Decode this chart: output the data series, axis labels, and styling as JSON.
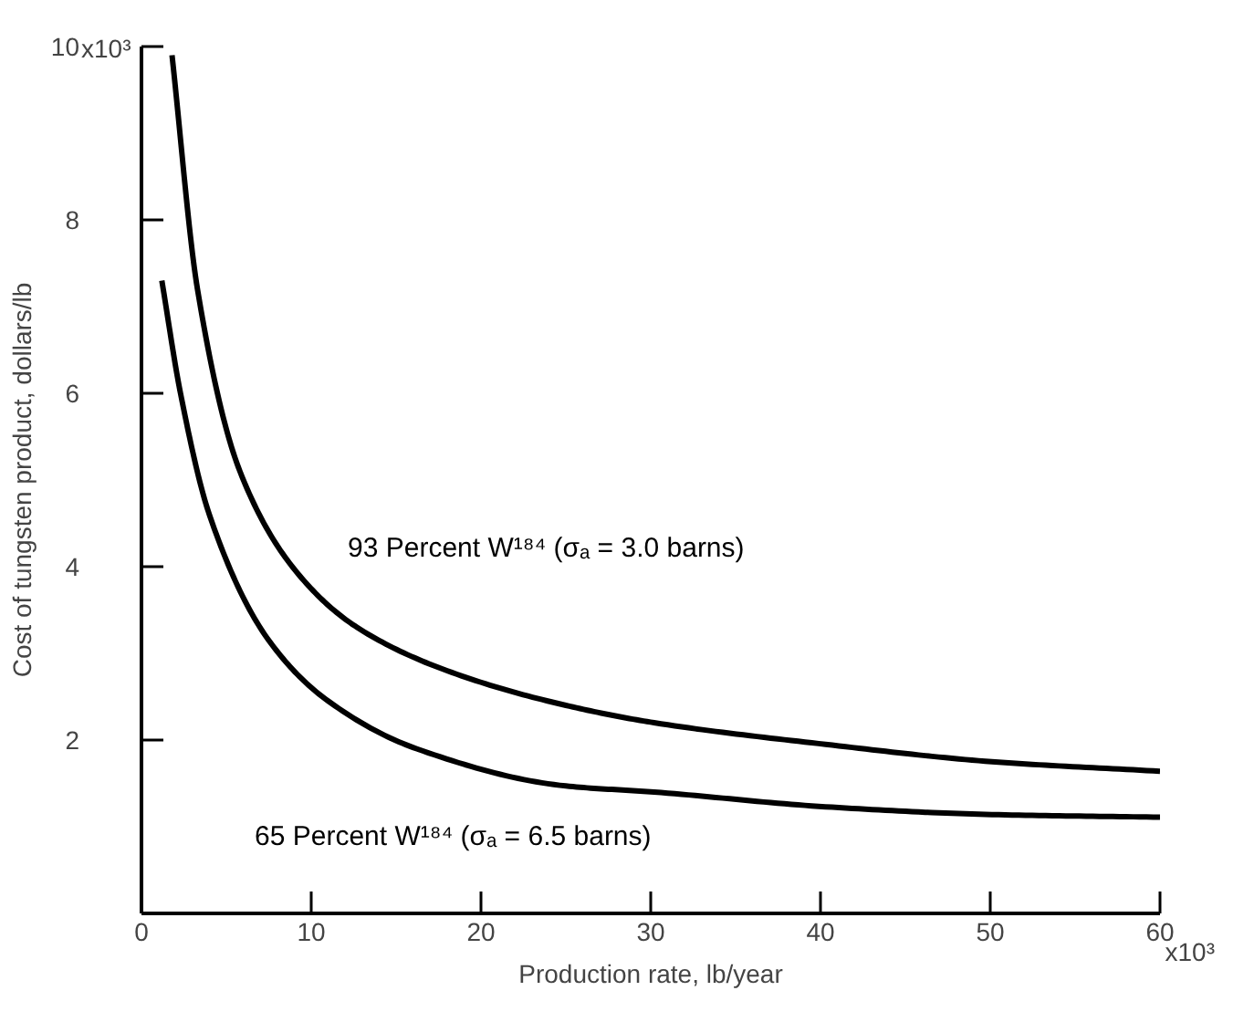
{
  "chart_data": {
    "type": "line",
    "xlabel": "Production rate, lb/year",
    "ylabel": "Cost of tungsten product, dollars/lb",
    "xlim": [
      0,
      60
    ],
    "ylim": [
      0,
      10
    ],
    "xticks": [
      0,
      10,
      20,
      30,
      40,
      50,
      60
    ],
    "yticks": [
      2,
      4,
      6,
      8,
      10
    ],
    "grid": false,
    "marker": "none",
    "line_style": "solid",
    "series": [
      {
        "color": "#000000",
        "x": [
          1.8,
          3.3,
          5.8,
          9.3,
          12.7,
          18.0,
          25.0,
          30.2,
          40.3,
          50.1,
          60
        ],
        "values": [
          9.9,
          7.2,
          5.1,
          3.9,
          3.3,
          2.8,
          2.4,
          2.2,
          1.95,
          1.75,
          1.64
        ]
      },
      {
        "color": "#000000",
        "x": [
          1.2,
          2.3,
          4.0,
          7.5,
          11.0,
          16.2,
          25.0,
          30.2,
          40.3,
          50.1,
          60
        ],
        "values": [
          7.3,
          6.0,
          4.6,
          3.15,
          2.45,
          1.9,
          1.47,
          1.4,
          1.23,
          1.14,
          1.11
        ]
      }
    ],
    "annotations": [
      "93 Percent W¹⁸⁴ (σₐ = 3.0 barns)",
      "65 Percent W¹⁸⁴ (σₐ = 6.5 barns)",
      "x10³",
      "x10³"
    ]
  }
}
